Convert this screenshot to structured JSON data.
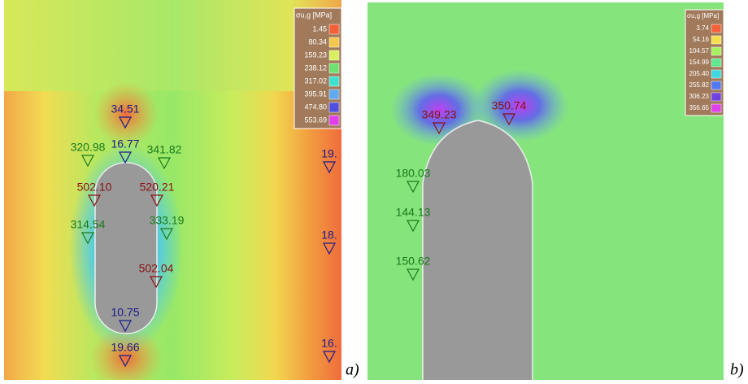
{
  "panel_a": {
    "legend": {
      "title": "σu,g [MPa]",
      "entries": [
        {
          "label": "1.45",
          "color": "#f4603a"
        },
        {
          "label": "80.34",
          "color": "#f4c84c"
        },
        {
          "label": "159.23",
          "color": "#d8f060"
        },
        {
          "label": "238.12",
          "color": "#70e070"
        },
        {
          "label": "317.02",
          "color": "#40e0d0"
        },
        {
          "label": "395.91",
          "color": "#60a8f0"
        },
        {
          "label": "474.80",
          "color": "#5050e0"
        },
        {
          "label": "553.69",
          "color": "#e040e8"
        }
      ]
    },
    "annotations": [
      {
        "text": "34.51",
        "color": "#1a1a8a"
      },
      {
        "text": "16.77",
        "color": "#1a1a8a"
      },
      {
        "text": "320.98",
        "color": "#1a7a1a"
      },
      {
        "text": "341.82",
        "color": "#1a7a1a"
      },
      {
        "text": "502.10",
        "color": "#8a1010"
      },
      {
        "text": "520.21",
        "color": "#8a1010"
      },
      {
        "text": "314.54",
        "color": "#1a7a1a"
      },
      {
        "text": "333.19",
        "color": "#1a7a1a"
      },
      {
        "text": "502.04",
        "color": "#8a1010"
      },
      {
        "text": "10.75",
        "color": "#1a1a8a"
      },
      {
        "text": "19.66",
        "color": "#1a1a8a"
      },
      {
        "text": "19.",
        "color": "#1a1a8a"
      },
      {
        "text": "18.",
        "color": "#1a1a8a"
      },
      {
        "text": "16.",
        "color": "#1a1a8a"
      }
    ],
    "caption": "a)"
  },
  "panel_b": {
    "legend": {
      "title": "σu,g [MPa]",
      "entries": [
        {
          "label": "3.74",
          "color": "#f4603a"
        },
        {
          "label": "54.16",
          "color": "#f4e04c"
        },
        {
          "label": "104.57",
          "color": "#a8f060"
        },
        {
          "label": "154.99",
          "color": "#60e890"
        },
        {
          "label": "205.40",
          "color": "#40d8e0"
        },
        {
          "label": "255.82",
          "color": "#5078f0"
        },
        {
          "label": "306.23",
          "color": "#7040e0"
        },
        {
          "label": "356.65",
          "color": "#e040e8"
        }
      ]
    },
    "annotations": [
      {
        "text": "349.23",
        "color": "#8a1010"
      },
      {
        "text": "350.74",
        "color": "#8a1010"
      },
      {
        "text": "180.03",
        "color": "#1a7a1a"
      },
      {
        "text": "144.13",
        "color": "#1a7a1a"
      },
      {
        "text": "150.62",
        "color": "#1a7a1a"
      }
    ],
    "caption": "b)"
  }
}
